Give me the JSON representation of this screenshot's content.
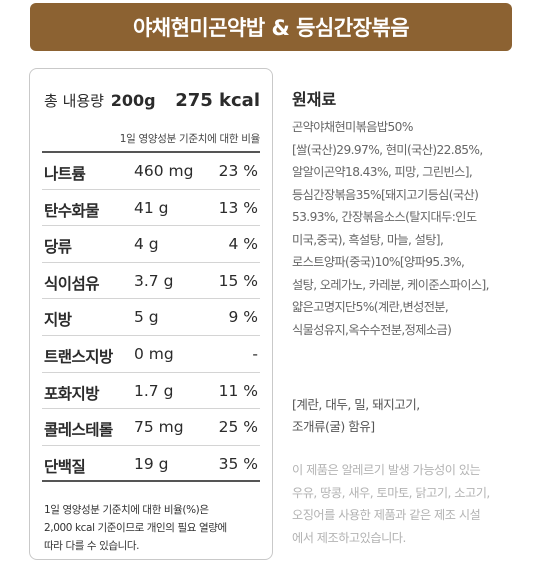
{
  "banner": {
    "title": "야채현미곤약밥 & 등심간장볶음"
  },
  "nutrition": {
    "total_label": "총 내용량",
    "total_amount": "200g",
    "total_kcal": "275 kcal",
    "reference_note": "1일 영양성분 기준치에 대한 비율",
    "rows": [
      {
        "name": "나트륨",
        "amount": "460 mg",
        "percent": "23 %"
      },
      {
        "name": "탄수화물",
        "amount": "41 g",
        "percent": "13 %"
      },
      {
        "name": "당류",
        "amount": "4 g",
        "percent": "4 %"
      },
      {
        "name": "식이섬유",
        "amount": "3.7 g",
        "percent": "15 %"
      },
      {
        "name": "지방",
        "amount": "5 g",
        "percent": "9 %"
      },
      {
        "name": "트랜스지방",
        "amount": "0 mg",
        "percent": "-"
      },
      {
        "name": "포화지방",
        "amount": "1.7 g",
        "percent": "11 %"
      },
      {
        "name": "콜레스테롤",
        "amount": "75 mg",
        "percent": "25 %"
      },
      {
        "name": "단백질",
        "amount": "19 g",
        "percent": "35 %"
      }
    ],
    "footnote_lines": [
      "1일 영양성분 기준치에 대한 비율(%)은",
      "2,000 kcal 기준이므로 개인의 필요 열량에",
      "따라 다를 수 있습니다."
    ]
  },
  "ingredients": {
    "heading": "원재료",
    "lines": [
      "곤약야채현미볶음밥50%",
      "[쌀(국산)29.97%, 현미(국산)22.85%,",
      "알알이곤약18.43%, 피망, 그린빈스],",
      "등심간장볶음35%[돼지고기등심(국산)",
      "53.93%, 간장볶음소스(탈지대두:인도",
      "미국,중국), 흑설탕, 마늘, 설탕],",
      "로스트양파(중국)10%[양파95.3%,",
      "설탕, 오레가노, 카레분, 케이준스파이스],",
      "얇은고명지단5%(계란,변성전분,",
      "식물성유지,옥수수전분,정제소금)"
    ],
    "allergen_lines": [
      "[계란, 대두, 밀, 돼지고기,",
      "조개류(굴) 함유]"
    ],
    "notice_lines": [
      "이 제품은 알레르기 발생 가능성이 있는",
      "우유, 땅콩, 새우, 토마토, 닭고기, 소고기,",
      "오징어를 사용한 제품과 같은 제조 시설",
      "에서 제조하고있습니다."
    ]
  }
}
